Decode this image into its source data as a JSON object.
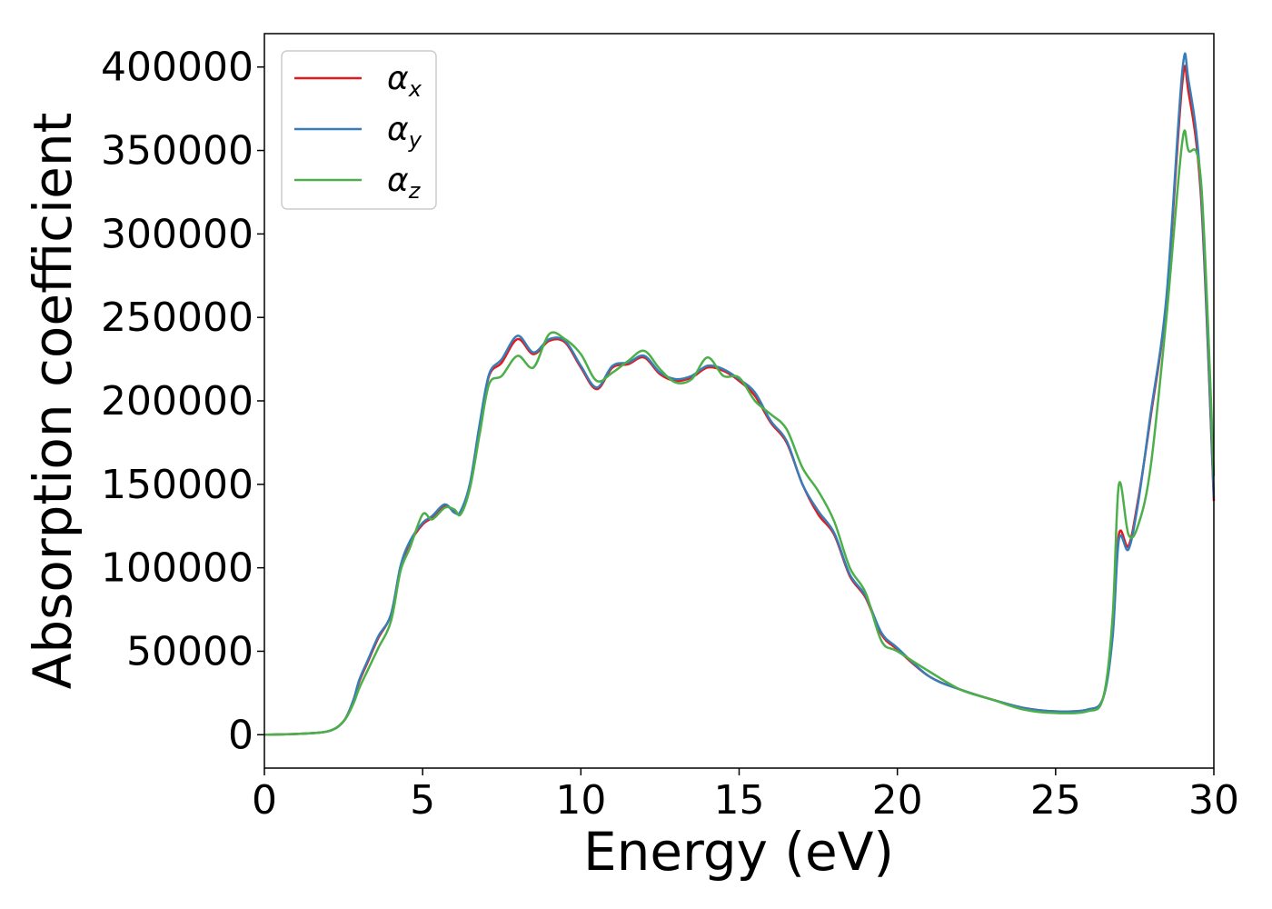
{
  "chart_data": {
    "type": "line",
    "title": "",
    "xlabel": "Energy (eV)",
    "ylabel": "Absorption coefficient",
    "xlim": [
      0,
      30
    ],
    "ylim": [
      -20000,
      420000
    ],
    "xticks": [
      0,
      5,
      10,
      15,
      20,
      25,
      30
    ],
    "yticks": [
      0,
      50000,
      100000,
      150000,
      200000,
      250000,
      300000,
      350000,
      400000
    ],
    "grid": false,
    "legend_position": "top-left",
    "series": [
      {
        "name": "α",
        "subscript": "x",
        "color": "#e41a1c",
        "x": [
          0,
          1,
          2,
          2.5,
          2.8,
          3,
          3.3,
          3.6,
          4,
          4.3,
          4.6,
          5,
          5.3,
          5.7,
          6,
          6.2,
          6.5,
          6.8,
          7.1,
          7.5,
          8,
          8.5,
          9,
          9.5,
          10,
          10.5,
          11,
          11.5,
          12,
          12.5,
          13,
          13.5,
          14,
          14.5,
          15,
          15.5,
          16,
          16.5,
          17,
          17.5,
          18,
          18.5,
          19,
          19.5,
          20,
          21,
          22,
          23,
          24,
          25,
          26,
          26.5,
          26.8,
          27,
          27.3,
          27.6,
          28,
          28.5,
          29,
          29.2,
          29.6,
          30
        ],
        "y": [
          0,
          500,
          2000,
          8000,
          20000,
          32000,
          45000,
          58000,
          72000,
          100000,
          115000,
          126000,
          130000,
          137000,
          134000,
          133000,
          150000,
          185000,
          215000,
          223000,
          237000,
          228000,
          236000,
          235000,
          220000,
          207000,
          220000,
          222000,
          226000,
          216000,
          212000,
          214000,
          220000,
          218000,
          212000,
          203000,
          187000,
          175000,
          150000,
          132000,
          120000,
          95000,
          82000,
          60000,
          51000,
          35000,
          27000,
          21000,
          16000,
          14000,
          15000,
          22000,
          60000,
          120000,
          113000,
          140000,
          190000,
          260000,
          390000,
          385000,
          320000,
          140000
        ]
      },
      {
        "name": "α",
        "subscript": "y",
        "color": "#377eb8",
        "x": [
          0,
          1,
          2,
          2.5,
          2.8,
          3,
          3.3,
          3.6,
          4,
          4.3,
          4.6,
          5,
          5.3,
          5.7,
          6,
          6.2,
          6.5,
          6.8,
          7.1,
          7.5,
          8,
          8.5,
          9,
          9.5,
          10,
          10.5,
          11,
          11.5,
          12,
          12.5,
          13,
          13.5,
          14,
          14.5,
          15,
          15.5,
          16,
          16.5,
          17,
          17.5,
          18,
          18.5,
          19,
          19.5,
          20,
          21,
          22,
          23,
          24,
          25,
          26,
          26.5,
          26.8,
          27,
          27.3,
          27.6,
          28,
          28.5,
          29,
          29.2,
          29.6,
          30
        ],
        "y": [
          0,
          500,
          2000,
          8000,
          20000,
          33000,
          46000,
          59000,
          72000,
          101000,
          116000,
          127000,
          131000,
          138000,
          133000,
          134000,
          151000,
          186000,
          216000,
          225000,
          239000,
          229000,
          237000,
          236000,
          221000,
          208000,
          221000,
          223000,
          227000,
          217000,
          213000,
          215000,
          221000,
          219000,
          213000,
          205000,
          188000,
          176000,
          150000,
          134000,
          121000,
          96000,
          83000,
          61000,
          52000,
          35000,
          27000,
          21000,
          16000,
          14000,
          15000,
          22000,
          58000,
          117000,
          111000,
          138000,
          192000,
          262000,
          397000,
          392000,
          325000,
          142000
        ]
      },
      {
        "name": "α",
        "subscript": "z",
        "color": "#4daf4a",
        "x": [
          0,
          1,
          2,
          2.5,
          2.8,
          3,
          3.3,
          3.6,
          4,
          4.3,
          4.6,
          5,
          5.3,
          5.7,
          6,
          6.2,
          6.5,
          6.8,
          7.1,
          7.5,
          8,
          8.5,
          9,
          9.5,
          10,
          10.5,
          11,
          11.5,
          12,
          12.5,
          13,
          13.5,
          14,
          14.5,
          15,
          15.5,
          16,
          16.5,
          17,
          17.5,
          18,
          18.5,
          19,
          19.5,
          20,
          21,
          22,
          23,
          24,
          25,
          26,
          26.5,
          26.8,
          27,
          27.3,
          27.6,
          28,
          28.5,
          29,
          29.2,
          29.6,
          30
        ],
        "y": [
          0,
          500,
          2000,
          8000,
          18000,
          28000,
          40000,
          52000,
          68000,
          98000,
          112000,
          132000,
          129000,
          136000,
          135000,
          132000,
          148000,
          180000,
          210000,
          215000,
          227000,
          220000,
          240000,
          237000,
          228000,
          212000,
          217000,
          224000,
          230000,
          219000,
          211000,
          213000,
          226000,
          215000,
          214000,
          200000,
          192000,
          183000,
          160000,
          146000,
          128000,
          100000,
          85000,
          56000,
          50000,
          38000,
          27000,
          21000,
          15000,
          13000,
          14000,
          22000,
          70000,
          150000,
          120000,
          125000,
          160000,
          250000,
          355000,
          350000,
          330000,
          155000
        ]
      }
    ]
  }
}
